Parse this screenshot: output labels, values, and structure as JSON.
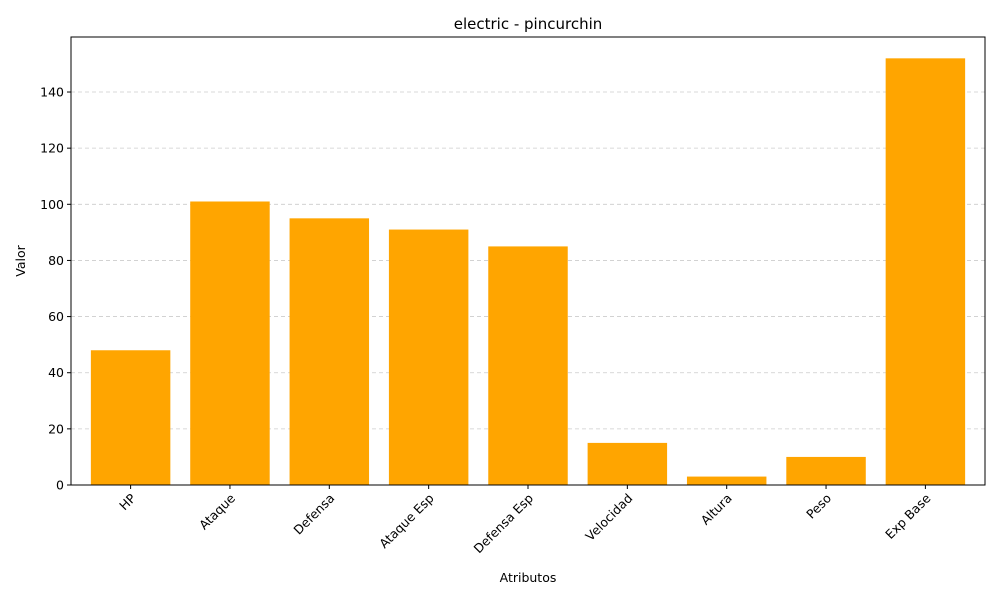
{
  "chart_data": {
    "type": "bar",
    "title": "electric - pincurchin",
    "xlabel": "Atributos",
    "ylabel": "Valor",
    "categories": [
      "HP",
      "Ataque",
      "Defensa",
      "Ataque Esp",
      "Defensa Esp",
      "Velocidad",
      "Altura",
      "Peso",
      "Exp Base"
    ],
    "values": [
      48,
      101,
      95,
      91,
      85,
      15,
      3,
      10,
      152
    ],
    "yticks": [
      0,
      20,
      40,
      60,
      80,
      100,
      120,
      140
    ],
    "ylim": [
      0,
      159.6
    ],
    "grid": "y dashed",
    "bar_color": "#FFA500",
    "x_tick_rotation": 45
  }
}
